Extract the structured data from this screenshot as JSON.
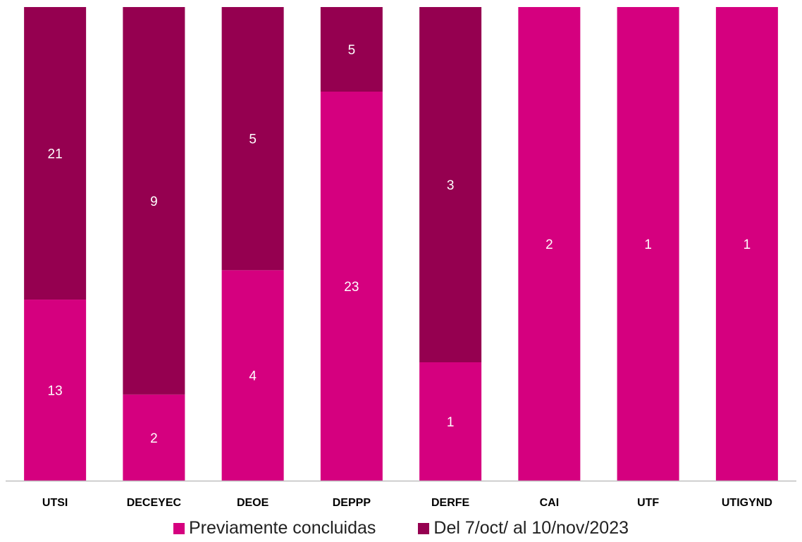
{
  "chart_data": {
    "type": "bar",
    "stacked": "percent",
    "categories": [
      "UTSI",
      "DECEYEC",
      "DEOE",
      "DEPPP",
      "DERFE",
      "CAI",
      "UTF",
      "UTIGYND"
    ],
    "series": [
      {
        "name": "Previamente concluidas",
        "values": [
          13,
          2,
          4,
          23,
          1,
          2,
          1,
          1
        ],
        "color": "#D5007F"
      },
      {
        "name": "Del 7/oct/ al 10/nov/2023",
        "values": [
          21,
          9,
          5,
          5,
          3,
          0,
          0,
          0
        ],
        "color": "#950050"
      }
    ],
    "data_labels": true,
    "title": "",
    "xlabel": "",
    "ylabel": "",
    "legend_position": "bottom",
    "grid": false
  },
  "legend": {
    "items": [
      {
        "label": "Previamente concluidas",
        "color": "#D5007F"
      },
      {
        "label": "Del 7/oct/ al 10/nov/2023",
        "color": "#950050"
      }
    ]
  }
}
